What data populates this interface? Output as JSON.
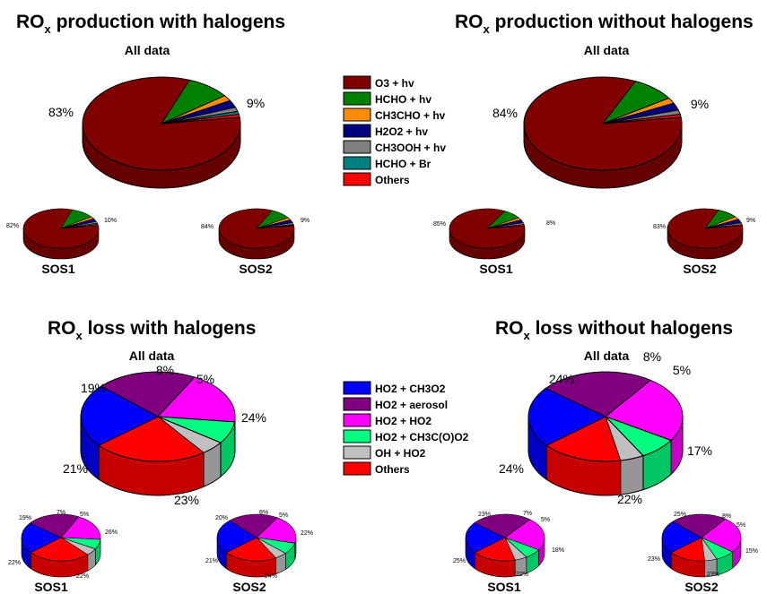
{
  "panels": {
    "prod_with": {
      "title_main": "RO",
      "title_sub": "x",
      "title_rest": " production with halogens",
      "subtitle": "All data"
    },
    "prod_without": {
      "title_main": "RO",
      "title_sub": "x",
      "title_rest": " production without halogens",
      "subtitle": "All data"
    },
    "loss_with": {
      "title_main": "RO",
      "title_sub": "x",
      "title_rest": " loss with halogens",
      "subtitle": "All data"
    },
    "loss_without": {
      "title_main": "RO",
      "title_sub": "x",
      "title_rest": " loss without halogens",
      "subtitle": "All data"
    }
  },
  "production_legend": [
    {
      "label": "O3 + hv",
      "color": "#800000"
    },
    {
      "label": "HCHO + hv",
      "color": "#008000"
    },
    {
      "label": "CH3CHO + hv",
      "color": "#ff8c00"
    },
    {
      "label": "H2O2 + hv",
      "color": "#000080"
    },
    {
      "label": "CH3OOH + hv",
      "color": "#808080"
    },
    {
      "label": "HCHO + Br",
      "color": "#008080"
    },
    {
      "label": "Others",
      "color": "#ff0000"
    }
  ],
  "loss_legend": [
    {
      "label": "HO2 + CH3O2",
      "color": "#0000ff"
    },
    {
      "label": "HO2 + aerosol",
      "color": "#800080"
    },
    {
      "label": "HO2 + HO2",
      "color": "#ff00ff"
    },
    {
      "label": "HO2 + CH3C(O)O2",
      "color": "#00ff80"
    },
    {
      "label": "OH + HO2",
      "color": "#c0c0c0"
    },
    {
      "label": "Others",
      "color": "#ff0000"
    }
  ],
  "chart_data": [
    {
      "type": "pie",
      "panel": "prod_with",
      "name": "All data",
      "slices": [
        {
          "label": "O3 + hv",
          "value": 83,
          "color": "#800000"
        },
        {
          "label": "HCHO + hv",
          "value": 9,
          "color": "#008000"
        },
        {
          "label": "CH3CHO + hv",
          "value": 2,
          "color": "#ff8c00"
        },
        {
          "label": "H2O2 + hv",
          "value": 2.5,
          "color": "#000080"
        },
        {
          "label": "CH3OOH + hv",
          "value": 1.5,
          "color": "#808080"
        },
        {
          "label": "HCHO + Br",
          "value": 1,
          "color": "#008080"
        },
        {
          "label": "Others",
          "value": 1,
          "color": "#ff0000"
        }
      ],
      "data_labels": [
        "83%",
        "9%"
      ]
    },
    {
      "type": "pie",
      "panel": "prod_with",
      "name": "SOS1",
      "slices": [
        {
          "label": "O3 + hv",
          "value": 82,
          "color": "#800000"
        },
        {
          "label": "HCHO + hv",
          "value": 10,
          "color": "#008000"
        },
        {
          "label": "CH3CHO + hv",
          "value": 2,
          "color": "#ff8c00"
        },
        {
          "label": "H2O2 + hv",
          "value": 2.5,
          "color": "#000080"
        },
        {
          "label": "CH3OOH + hv",
          "value": 1.5,
          "color": "#808080"
        },
        {
          "label": "HCHO + Br",
          "value": 1,
          "color": "#008080"
        },
        {
          "label": "Others",
          "value": 1,
          "color": "#ff0000"
        }
      ],
      "data_labels": [
        "82%",
        "10%"
      ]
    },
    {
      "type": "pie",
      "panel": "prod_with",
      "name": "SOS2",
      "slices": [
        {
          "label": "O3 + hv",
          "value": 84,
          "color": "#800000"
        },
        {
          "label": "HCHO + hv",
          "value": 9,
          "color": "#008000"
        },
        {
          "label": "CH3CHO + hv",
          "value": 2,
          "color": "#ff8c00"
        },
        {
          "label": "H2O2 + hv",
          "value": 2.5,
          "color": "#000080"
        },
        {
          "label": "CH3OOH + hv",
          "value": 1.5,
          "color": "#808080"
        },
        {
          "label": "HCHO + Br",
          "value": 0.5,
          "color": "#008080"
        },
        {
          "label": "Others",
          "value": 0.5,
          "color": "#ff0000"
        }
      ],
      "data_labels": [
        "84%",
        "9%"
      ]
    },
    {
      "type": "pie",
      "panel": "prod_without",
      "name": "All data",
      "slices": [
        {
          "label": "O3 + hv",
          "value": 84,
          "color": "#800000"
        },
        {
          "label": "HCHO + hv",
          "value": 9,
          "color": "#008000"
        },
        {
          "label": "CH3CHO + hv",
          "value": 2,
          "color": "#ff8c00"
        },
        {
          "label": "H2O2 + hv",
          "value": 2.5,
          "color": "#000080"
        },
        {
          "label": "CH3OOH + hv",
          "value": 1.5,
          "color": "#808080"
        },
        {
          "label": "Others",
          "value": 1,
          "color": "#ff0000"
        }
      ],
      "data_labels": [
        "84%",
        "9%"
      ]
    },
    {
      "type": "pie",
      "panel": "prod_without",
      "name": "SOS1",
      "slices": [
        {
          "label": "O3 + hv",
          "value": 85,
          "color": "#800000"
        },
        {
          "label": "HCHO + hv",
          "value": 8,
          "color": "#008000"
        },
        {
          "label": "CH3CHO + hv",
          "value": 2,
          "color": "#ff8c00"
        },
        {
          "label": "H2O2 + hv",
          "value": 2.5,
          "color": "#000080"
        },
        {
          "label": "CH3OOH + hv",
          "value": 1.5,
          "color": "#808080"
        },
        {
          "label": "Others",
          "value": 1,
          "color": "#ff0000"
        }
      ],
      "data_labels": [
        "85%",
        "8%"
      ]
    },
    {
      "type": "pie",
      "panel": "prod_without",
      "name": "SOS2",
      "slices": [
        {
          "label": "O3 + hv",
          "value": 83,
          "color": "#800000"
        },
        {
          "label": "HCHO + hv",
          "value": 9,
          "color": "#008000"
        },
        {
          "label": "CH3CHO + hv",
          "value": 2.5,
          "color": "#ff8c00"
        },
        {
          "label": "H2O2 + hv",
          "value": 3,
          "color": "#000080"
        },
        {
          "label": "CH3OOH + hv",
          "value": 1.5,
          "color": "#808080"
        },
        {
          "label": "Others",
          "value": 1,
          "color": "#ff0000"
        }
      ],
      "data_labels": [
        "83%",
        "9%"
      ]
    },
    {
      "type": "pie",
      "panel": "loss_with",
      "name": "All data",
      "slices": [
        {
          "label": "HO2 + CH3O2",
          "value": 23,
          "color": "#0000ff"
        },
        {
          "label": "HO2 + aerosol",
          "value": 21,
          "color": "#800080"
        },
        {
          "label": "HO2 + HO2",
          "value": 19,
          "color": "#ff00ff"
        },
        {
          "label": "HO2 + CH3C(O)O2",
          "value": 8,
          "color": "#00ff80"
        },
        {
          "label": "OH + HO2",
          "value": 5,
          "color": "#c0c0c0"
        },
        {
          "label": "Others",
          "value": 24,
          "color": "#ff0000"
        }
      ],
      "data_labels": [
        "23%",
        "21%",
        "19%",
        "8%",
        "5%",
        "24%"
      ]
    },
    {
      "type": "pie",
      "panel": "loss_with",
      "name": "SOS1",
      "slices": [
        {
          "label": "HO2 + CH3O2",
          "value": 22,
          "color": "#0000ff"
        },
        {
          "label": "HO2 + aerosol",
          "value": 22,
          "color": "#800080"
        },
        {
          "label": "HO2 + HO2",
          "value": 19,
          "color": "#ff00ff"
        },
        {
          "label": "HO2 + CH3C(O)O2",
          "value": 7,
          "color": "#00ff80"
        },
        {
          "label": "OH + HO2",
          "value": 5,
          "color": "#c0c0c0"
        },
        {
          "label": "Others",
          "value": 26,
          "color": "#ff0000"
        }
      ],
      "data_labels": [
        "22%",
        "22%",
        "19%",
        "7%",
        "5%",
        "26%"
      ]
    },
    {
      "type": "pie",
      "panel": "loss_with",
      "name": "SOS2",
      "slices": [
        {
          "label": "HO2 + CH3O2",
          "value": 24,
          "color": "#0000ff"
        },
        {
          "label": "HO2 + aerosol",
          "value": 21,
          "color": "#800080"
        },
        {
          "label": "HO2 + HO2",
          "value": 20,
          "color": "#ff00ff"
        },
        {
          "label": "HO2 + CH3C(O)O2",
          "value": 8,
          "color": "#00ff80"
        },
        {
          "label": "OH + HO2",
          "value": 5,
          "color": "#c0c0c0"
        },
        {
          "label": "Others",
          "value": 22,
          "color": "#ff0000"
        }
      ],
      "data_labels": [
        "24%",
        "21%",
        "20%",
        "8%",
        "5%",
        "22%"
      ]
    },
    {
      "type": "pie",
      "panel": "loss_without",
      "name": "All data",
      "slices": [
        {
          "label": "HO2 + CH3O2",
          "value": 22,
          "color": "#0000ff"
        },
        {
          "label": "HO2 + aerosol",
          "value": 24,
          "color": "#800080"
        },
        {
          "label": "HO2 + HO2",
          "value": 24,
          "color": "#ff00ff"
        },
        {
          "label": "HO2 + CH3C(O)O2",
          "value": 8,
          "color": "#00ff80"
        },
        {
          "label": "OH + HO2",
          "value": 5,
          "color": "#c0c0c0"
        },
        {
          "label": "Others",
          "value": 17,
          "color": "#ff0000"
        }
      ],
      "data_labels": [
        "22%",
        "24%",
        "24%",
        "8%",
        "5%",
        "17%"
      ]
    },
    {
      "type": "pie",
      "panel": "loss_without",
      "name": "SOS1",
      "slices": [
        {
          "label": "HO2 + CH3O2",
          "value": 22,
          "color": "#0000ff"
        },
        {
          "label": "HO2 + aerosol",
          "value": 25,
          "color": "#800080"
        },
        {
          "label": "HO2 + HO2",
          "value": 23,
          "color": "#ff00ff"
        },
        {
          "label": "HO2 + CH3C(O)O2",
          "value": 7,
          "color": "#00ff80"
        },
        {
          "label": "OH + HO2",
          "value": 5,
          "color": "#c0c0c0"
        },
        {
          "label": "Others",
          "value": 18,
          "color": "#ff0000"
        }
      ],
      "data_labels": [
        "22%",
        "25%",
        "23%",
        "7%",
        "5%",
        "18%"
      ]
    },
    {
      "type": "pie",
      "panel": "loss_without",
      "name": "SOS2",
      "slices": [
        {
          "label": "HO2 + CH3O2",
          "value": 23,
          "color": "#0000ff"
        },
        {
          "label": "HO2 + aerosol",
          "value": 23,
          "color": "#800080"
        },
        {
          "label": "HO2 + HO2",
          "value": 25,
          "color": "#ff00ff"
        },
        {
          "label": "HO2 + CH3C(O)O2",
          "value": 8,
          "color": "#00ff80"
        },
        {
          "label": "OH + HO2",
          "value": 5,
          "color": "#c0c0c0"
        },
        {
          "label": "Others",
          "value": 15,
          "color": "#ff0000"
        }
      ],
      "data_labels": [
        "23%",
        "23%",
        "25%",
        "8%",
        "5%",
        "15%"
      ]
    }
  ]
}
